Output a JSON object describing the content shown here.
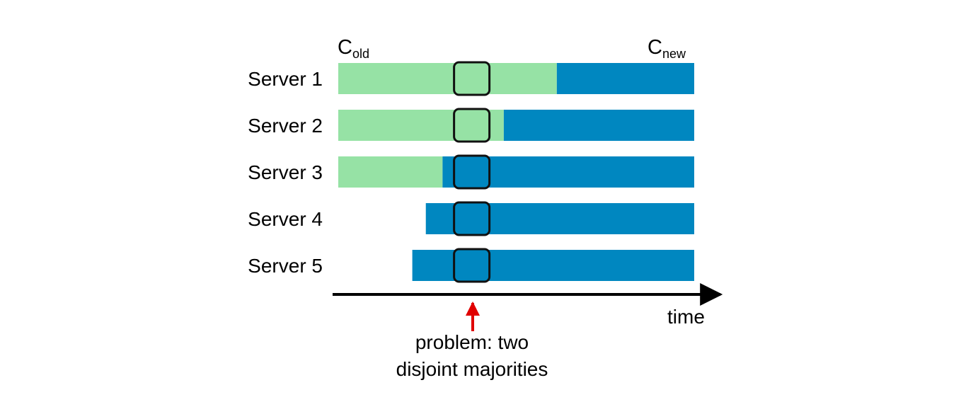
{
  "colors": {
    "old_config": "#96e2a5",
    "new_config": "#0087c0",
    "highlight_border": "#111111",
    "axis": "#000000",
    "problem_arrow": "#e00000"
  },
  "config_labels": {
    "old": {
      "main": "C",
      "sub": "old"
    },
    "new": {
      "main": "C",
      "sub": "new"
    }
  },
  "servers": [
    {
      "label": "Server 1",
      "old_start": 0.0,
      "switch": 0.614,
      "end": 1.0
    },
    {
      "label": "Server 2",
      "old_start": 0.0,
      "switch": 0.465,
      "end": 1.0
    },
    {
      "label": "Server 3",
      "old_start": 0.0,
      "switch": 0.293,
      "end": 1.0
    },
    {
      "label": "Server 4",
      "old_start": null,
      "switch": 0.246,
      "end": 1.0
    },
    {
      "label": "Server 5",
      "old_start": null,
      "switch": 0.208,
      "end": 1.0
    }
  ],
  "highlight_time": 0.375,
  "axis": {
    "label": "time"
  },
  "problem": {
    "lines": [
      "problem: two",
      "disjoint majorities"
    ]
  }
}
